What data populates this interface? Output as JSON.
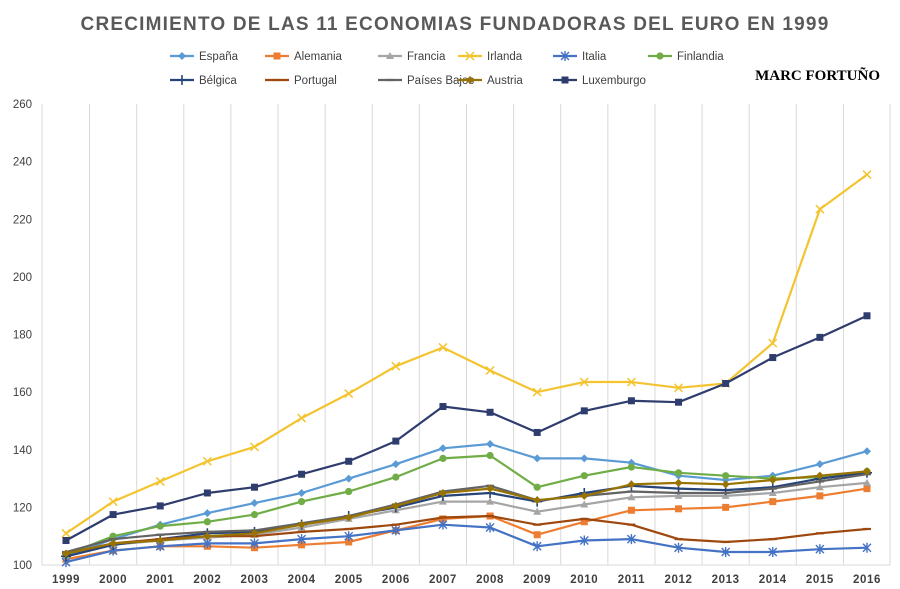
{
  "chart_data": {
    "type": "line",
    "title": "CRECIMIENTO DE LAS 11 ECONOMIAS FUNDADORAS DEL EURO EN 1999",
    "author": "MARC FORTUÑO",
    "x": [
      "1999",
      "2000",
      "2001",
      "2002",
      "2003",
      "2004",
      "2005",
      "2006",
      "2007",
      "2008",
      "2009",
      "2010",
      "2011",
      "2012",
      "2013",
      "2014",
      "2015",
      "2016"
    ],
    "ylim": [
      100,
      260
    ],
    "yticks": [
      100,
      120,
      140,
      160,
      180,
      200,
      220,
      240,
      260
    ],
    "grid": "vertical",
    "legend_position": "top",
    "series": [
      {
        "name": "España",
        "color": "#5B9BD5",
        "marker": "diamond",
        "values": [
          103,
          109,
          114,
          118,
          121.5,
          125,
          130,
          135,
          140.5,
          142,
          137,
          137,
          135.5,
          131,
          129.5,
          131,
          135,
          139.5
        ]
      },
      {
        "name": "Alemania",
        "color": "#ED7D31",
        "marker": "square",
        "values": [
          102,
          105,
          106.5,
          106.5,
          106,
          107,
          108,
          112,
          116,
          117,
          110.5,
          115,
          119,
          119.5,
          120,
          122,
          124,
          126.5
        ]
      },
      {
        "name": "Francia",
        "color": "#A5A5A5",
        "marker": "triangle",
        "values": [
          103,
          107,
          108.5,
          109.5,
          110.5,
          113,
          116,
          119,
          122,
          122,
          118.5,
          121,
          123.5,
          124,
          124,
          125,
          127,
          128.5
        ]
      },
      {
        "name": "Irlanda",
        "color": "#F4C430",
        "marker": "x",
        "values": [
          111,
          122,
          129,
          136,
          141,
          151,
          159.5,
          169,
          175.5,
          167.5,
          160,
          163.5,
          163.5,
          161.5,
          163,
          177,
          223.5,
          235.5
        ]
      },
      {
        "name": "Italia",
        "color": "#4472C4",
        "marker": "star",
        "values": [
          101,
          105,
          106.5,
          107.5,
          107.5,
          109,
          110,
          112,
          114,
          113,
          106.5,
          108.5,
          109,
          106,
          104.5,
          104.5,
          105.5,
          106
        ]
      },
      {
        "name": "Finlandia",
        "color": "#70AD47",
        "marker": "circle",
        "values": [
          103.5,
          110,
          113.5,
          115,
          117.5,
          122,
          125.5,
          130.5,
          137,
          138,
          127,
          131,
          134,
          132,
          131,
          130,
          130.5,
          132.5
        ]
      },
      {
        "name": "Bélgica",
        "color": "#264478",
        "marker": "plus",
        "values": [
          103,
          107,
          109,
          111,
          111.5,
          114,
          117,
          120,
          124,
          125,
          122,
          125,
          127.5,
          126.5,
          126,
          127,
          130,
          132
        ]
      },
      {
        "name": "Portugal",
        "color": "#9E480E",
        "marker": "dash",
        "values": [
          104,
          107.5,
          109,
          110,
          110,
          111.5,
          112.5,
          114,
          116.5,
          117,
          114,
          116,
          114,
          109,
          108,
          109,
          111,
          112.5
        ]
      },
      {
        "name": "Países Bajos",
        "color": "#636363",
        "marker": "dash",
        "values": [
          104.5,
          109,
          110.5,
          111.5,
          112,
          114.5,
          117,
          121,
          125.5,
          127.5,
          122.5,
          124,
          125.5,
          125,
          125,
          126.5,
          129,
          131.5
        ]
      },
      {
        "name": "Austria",
        "color": "#997300",
        "marker": "diamond",
        "values": [
          104,
          107.5,
          108.5,
          110,
          111,
          114,
          116.5,
          120.5,
          125,
          126.5,
          122.5,
          124,
          128,
          128.5,
          128,
          129.5,
          131,
          132.5
        ]
      },
      {
        "name": "Luxemburgo",
        "color": "#2F3D6E",
        "marker": "square",
        "values": [
          108.5,
          117.5,
          120.5,
          125,
          127,
          131.5,
          136,
          143,
          155,
          153,
          146,
          153.5,
          157,
          156.5,
          163,
          172,
          179,
          186.5
        ]
      }
    ]
  }
}
